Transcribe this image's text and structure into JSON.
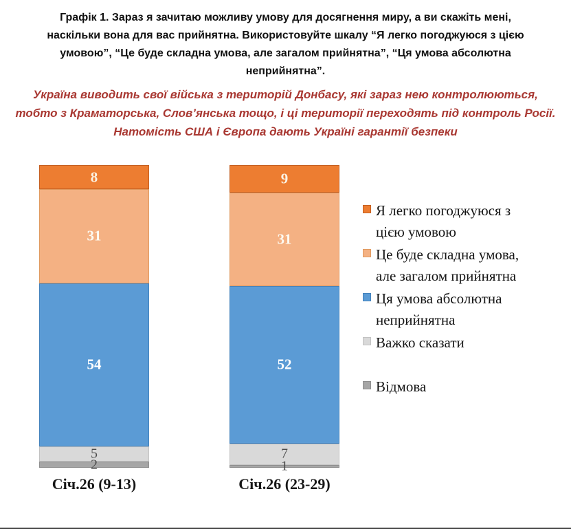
{
  "title": {
    "lines": [
      "Графік 1. Зараз я зачитаю можливу умову для досягнення миру, а ви скажіть мені,",
      "наскільки вона для вас прийнятна. Використовуйте шкалу “Я легко погоджуюся з цією",
      "умовою”, “Це буде складна умова, але загалом прийнятна”, “Ця умова абсолютна",
      "неприйнятна”."
    ]
  },
  "subtitle": {
    "lines": [
      "Україна виводить свої війська з територій Донбасу, які зараз нею контролюються,",
      "тобто з Краматорська, Слов’янська тощо, і ці території переходять під контроль Росії.",
      "Натомість США і Європа дають Україні гарантії безпеки"
    ],
    "color": "#A93832"
  },
  "chart_data": {
    "type": "bar",
    "stacked": true,
    "orientation": "vertical",
    "grid": false,
    "legend_position": "right",
    "value_labels": true,
    "ylim": [
      0,
      100
    ],
    "categories": [
      "Січ.26 (9-13)",
      "Січ.26 (23-29)"
    ],
    "series": [
      {
        "name": "Я легко погоджуюся з цією умовою",
        "label_lines": [
          "Я легко погоджуюся з",
          "цією умовою"
        ],
        "values": [
          8,
          9
        ],
        "color": "#ED7D31",
        "border_color": "#C55F20",
        "label_color": "#FBF3E4"
      },
      {
        "name": "Це буде складна умова, але загалом прийнятна",
        "label_lines": [
          "Це буде складна умова,",
          "але загалом прийнятна"
        ],
        "values": [
          31,
          31
        ],
        "color": "#F4B183",
        "border_color": "#E09A60",
        "label_color": "#FDFAF2"
      },
      {
        "name": "Ця умова абсолютна неприйнятна",
        "label_lines": [
          "Ця умова абсолютна",
          "неприйнятна"
        ],
        "values": [
          54,
          52
        ],
        "color": "#5B9BD5",
        "border_color": "#4382BD",
        "label_color": "#FFFFFF"
      },
      {
        "name": "Важко сказати",
        "label_lines": [
          "Важко сказати"
        ],
        "values": [
          5,
          7
        ],
        "color": "#D9D9D9",
        "border_color": "#C2C2C2",
        "label_color": "#4D4D4D"
      },
      {
        "name": "Відмова",
        "label_lines": [
          "Відмова"
        ],
        "values": [
          2,
          1
        ],
        "color": "#A6A6A6",
        "border_color": "#8F8F8F",
        "label_color": "#4D4D4D"
      }
    ]
  }
}
